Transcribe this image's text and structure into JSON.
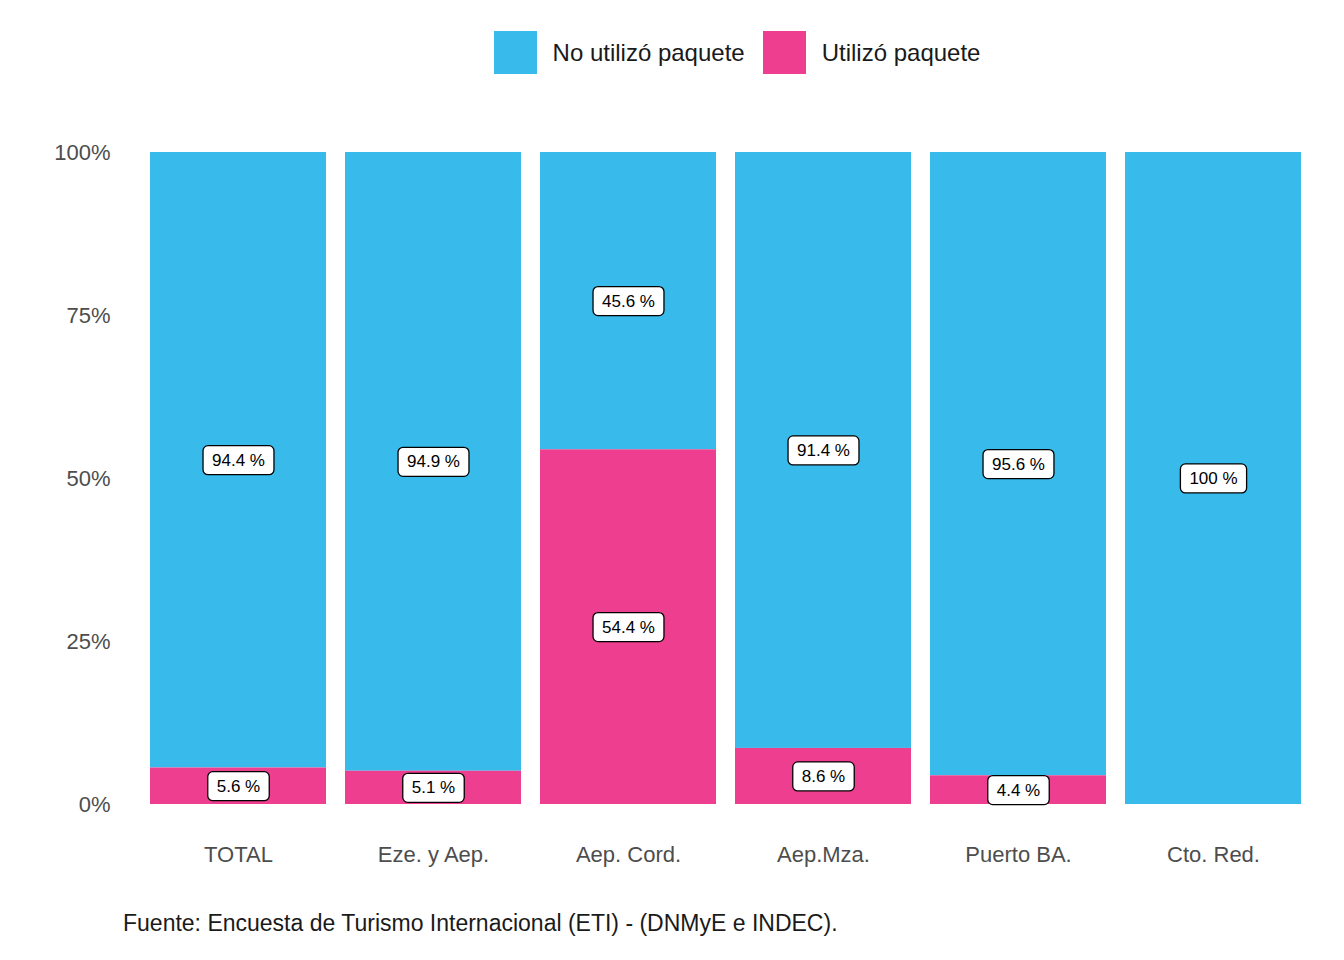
{
  "chart_data": {
    "type": "bar",
    "stacked": true,
    "data_labels": true,
    "legend": "top",
    "caption": "Fuente: Encuesta de Turismo Internacional (ETI) - (DNMyE e INDEC).",
    "categories": [
      "TOTAL",
      "Eze. y Aep.",
      "Aep. Cord.",
      "Aep.Mza.",
      "Puerto BA.",
      "Cto. Red."
    ],
    "series": [
      {
        "name": "No utilizó paquete",
        "color": "#38bbeb",
        "values": [
          94.4,
          94.9,
          45.6,
          91.4,
          95.6,
          100
        ],
        "value_labels": [
          "94.4 %",
          "94.9 %",
          "45.6 %",
          "91.4 %",
          "95.6 %",
          "100 %"
        ]
      },
      {
        "name": "Utilizó paquete",
        "color": "#ee3e8f",
        "values": [
          5.6,
          5.1,
          54.4,
          8.6,
          4.4,
          0
        ],
        "value_labels": [
          "5.6 %",
          "5.1 %",
          "54.4 %",
          "8.6 %",
          "4.4 %",
          null
        ]
      }
    ],
    "ylim": [
      0,
      100
    ],
    "yticks": [
      {
        "value": 0,
        "label": "0%"
      },
      {
        "value": 25,
        "label": "25%"
      },
      {
        "value": 50,
        "label": "50%"
      },
      {
        "value": 75,
        "label": "75%"
      },
      {
        "value": 100,
        "label": "100%"
      }
    ]
  }
}
